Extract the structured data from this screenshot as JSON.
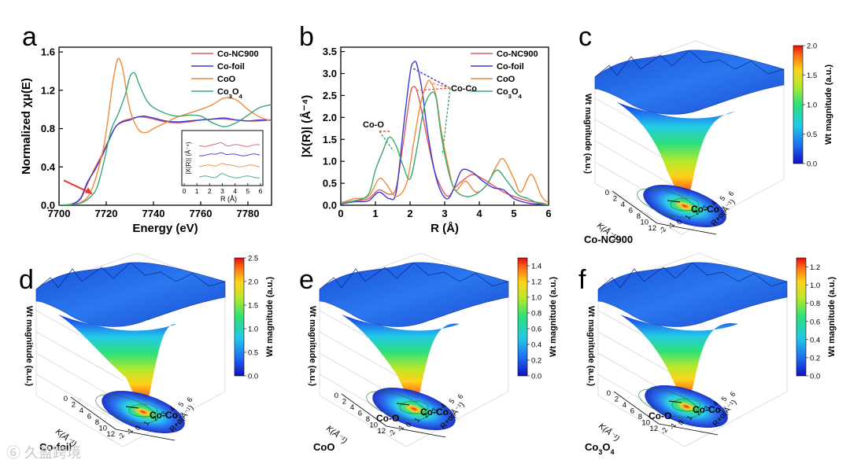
{
  "panels": {
    "a": {
      "letter": "a"
    },
    "b": {
      "letter": "b"
    },
    "c": {
      "letter": "c",
      "sample": "Co-NC900",
      "annotation": "Co-Co"
    },
    "d": {
      "letter": "d",
      "sample": "Co-foil",
      "annotation": "Co-Co"
    },
    "e": {
      "letter": "e",
      "sample": "CoO",
      "annotation1": "Co-O",
      "annotation2": "Co-Co"
    },
    "f": {
      "letter": "f",
      "sample": "Co",
      "sample_sub1": "3",
      "sample_mid": "O",
      "sample_sub2": "4",
      "annotation1": "Co-O",
      "annotation2": "Co-Co"
    }
  },
  "surface_axes": {
    "z_label": "Wt magnitude (a.u.)",
    "k_label": "K(Å⁻¹)",
    "r_label": "R+α(Å⁻¹)",
    "k_ticks": [
      "0",
      "2",
      "4",
      "6",
      "8",
      "10",
      "12"
    ],
    "r_ticks": [
      "-2",
      "-1",
      "0",
      "1",
      "2",
      "3",
      "4",
      "5",
      "6"
    ],
    "colorbar_label": "Wt magnitude (a.u.)"
  },
  "colors": {
    "Co-NC900": "#e05a5a",
    "Co-foil": "#3a3ad0",
    "CoO": "#ee8a3a",
    "Co3O4": "#3aa870"
  },
  "watermark": "⑥ 久盈跨境",
  "chart_data": [
    {
      "id": "a",
      "type": "line",
      "title": "",
      "xlabel": "Energy (eV)",
      "ylabel": "Normalized χμ(E)",
      "xlim": [
        7700,
        7790
      ],
      "ylim": [
        0,
        1.65
      ],
      "xticks": [
        7700,
        7720,
        7740,
        7760,
        7780
      ],
      "yticks": [
        0.0,
        0.4,
        0.8,
        1.2,
        1.6
      ],
      "ytick_labels": [
        "0.0",
        "0.4",
        "0.8",
        "1.2",
        "1.6"
      ],
      "legend": [
        "Co-NC900",
        "Co-foil",
        "CoO",
        "Co3O4"
      ],
      "series": [
        {
          "name": "Co-NC900",
          "x": [
            7700,
            7705,
            7709,
            7712,
            7715,
            7718,
            7721,
            7724,
            7727,
            7730,
            7733,
            7736,
            7740,
            7745,
            7750,
            7755,
            7760,
            7765,
            7770,
            7775,
            7780,
            7785,
            7790
          ],
          "y": [
            0.0,
            0.01,
            0.06,
            0.22,
            0.38,
            0.52,
            0.68,
            0.82,
            0.88,
            0.9,
            0.92,
            0.92,
            0.9,
            0.87,
            0.86,
            0.87,
            0.89,
            0.9,
            0.9,
            0.89,
            0.88,
            0.88,
            0.89
          ]
        },
        {
          "name": "Co-foil",
          "x": [
            7700,
            7705,
            7709,
            7712,
            7715,
            7718,
            7721,
            7724,
            7727,
            7730,
            7733,
            7736,
            7740,
            7745,
            7750,
            7755,
            7760,
            7765,
            7770,
            7775,
            7780,
            7785,
            7790
          ],
          "y": [
            0.0,
            0.01,
            0.07,
            0.24,
            0.36,
            0.5,
            0.67,
            0.82,
            0.87,
            0.89,
            0.92,
            0.93,
            0.91,
            0.88,
            0.87,
            0.88,
            0.89,
            0.9,
            0.91,
            0.89,
            0.88,
            0.89,
            0.89
          ]
        },
        {
          "name": "CoO",
          "x": [
            7700,
            7706,
            7710,
            7713,
            7716,
            7719,
            7721,
            7723,
            7725,
            7727,
            7729,
            7731,
            7734,
            7737,
            7740,
            7745,
            7750,
            7755,
            7760,
            7765,
            7770,
            7775,
            7780,
            7785,
            7790
          ],
          "y": [
            0.0,
            0.01,
            0.04,
            0.12,
            0.32,
            0.62,
            0.95,
            1.32,
            1.53,
            1.42,
            1.12,
            0.92,
            0.78,
            0.76,
            0.8,
            0.86,
            0.92,
            0.96,
            1.0,
            1.05,
            1.12,
            1.1,
            1.0,
            0.92,
            0.88
          ]
        },
        {
          "name": "Co3O4",
          "x": [
            7700,
            7706,
            7710,
            7713,
            7716,
            7719,
            7722,
            7725,
            7728,
            7730,
            7732,
            7734,
            7737,
            7740,
            7745,
            7750,
            7755,
            7760,
            7765,
            7770,
            7775,
            7780,
            7785,
            7790
          ],
          "y": [
            0.0,
            0.01,
            0.03,
            0.08,
            0.18,
            0.45,
            0.78,
            0.95,
            1.15,
            1.34,
            1.38,
            1.26,
            1.1,
            1.02,
            0.96,
            0.93,
            0.94,
            0.93,
            0.86,
            0.82,
            0.86,
            0.94,
            1.02,
            1.05
          ]
        }
      ],
      "annotations": [
        "arrow at pre-edge ≈ 7712 eV"
      ],
      "inset": {
        "xlabel": "R (Å)",
        "ylabel": "|X(R)| (Å⁻⁴)",
        "xticks": [
          0,
          1,
          2,
          3,
          4,
          5,
          6
        ]
      }
    },
    {
      "id": "b",
      "type": "line",
      "title": "",
      "xlabel": "R (Å)",
      "ylabel": "|X(R)| (Å⁻⁴)",
      "xlim": [
        0,
        6
      ],
      "ylim": [
        0,
        3.6
      ],
      "xticks": [
        0,
        1,
        2,
        3,
        4,
        5,
        6
      ],
      "yticks": [
        0.0,
        0.5,
        1.0,
        1.5,
        2.0,
        2.5,
        3.0,
        3.5
      ],
      "ytick_labels": [
        "0.0",
        "0.5",
        "1.0",
        "1.5",
        "2.0",
        "2.5",
        "3.0",
        "3.5"
      ],
      "legend": [
        "Co-NC900",
        "Co-foil",
        "CoO",
        "Co3O4"
      ],
      "series": [
        {
          "name": "Co-NC900",
          "x": [
            0,
            0.4,
            0.8,
            1.1,
            1.4,
            1.6,
            1.8,
            2.0,
            2.1,
            2.2,
            2.35,
            2.5,
            2.7,
            2.9,
            3.1,
            3.3,
            3.5,
            3.8,
            4.1,
            4.4,
            4.7,
            5.0,
            5.4,
            5.8,
            6.0
          ],
          "y": [
            0.05,
            0.1,
            0.15,
            0.35,
            0.25,
            0.4,
            1.4,
            2.5,
            2.7,
            2.6,
            2.1,
            1.5,
            0.8,
            0.4,
            0.2,
            0.4,
            0.55,
            0.7,
            0.6,
            0.45,
            0.3,
            0.2,
            0.1,
            0.05,
            0.0
          ]
        },
        {
          "name": "Co-foil",
          "x": [
            0,
            0.4,
            0.8,
            1.1,
            1.4,
            1.6,
            1.8,
            2.0,
            2.1,
            2.2,
            2.35,
            2.5,
            2.7,
            2.9,
            3.1,
            3.3,
            3.5,
            3.8,
            4.1,
            4.4,
            4.7,
            5.0,
            5.4,
            5.8,
            6.0
          ],
          "y": [
            0.03,
            0.08,
            0.1,
            0.3,
            0.15,
            0.3,
            1.7,
            3.0,
            3.25,
            3.2,
            2.6,
            1.7,
            0.8,
            0.3,
            0.15,
            0.45,
            0.8,
            0.75,
            0.55,
            0.4,
            0.35,
            0.15,
            0.05,
            0.02,
            0.0
          ]
        },
        {
          "name": "CoO",
          "x": [
            0,
            0.4,
            0.8,
            1.1,
            1.3,
            1.6,
            1.9,
            2.1,
            2.3,
            2.5,
            2.6,
            2.75,
            2.9,
            3.1,
            3.3,
            3.6,
            3.9,
            4.2,
            4.5,
            4.7,
            5.0,
            5.2,
            5.5,
            5.8,
            6.0
          ],
          "y": [
            0.05,
            0.15,
            0.2,
            0.6,
            0.5,
            0.2,
            0.5,
            1.4,
            2.3,
            2.8,
            2.8,
            2.5,
            1.7,
            0.9,
            0.35,
            0.55,
            0.3,
            0.45,
            0.9,
            1.05,
            0.6,
            0.3,
            0.7,
            0.2,
            0.05
          ]
        },
        {
          "name": "Co3O4",
          "x": [
            0,
            0.4,
            0.8,
            1.0,
            1.2,
            1.4,
            1.6,
            1.8,
            2.0,
            2.2,
            2.4,
            2.6,
            2.75,
            2.9,
            3.1,
            3.3,
            3.6,
            3.9,
            4.2,
            4.5,
            4.8,
            5.1,
            5.4,
            5.7,
            6.0
          ],
          "y": [
            0.05,
            0.1,
            0.25,
            0.8,
            1.2,
            1.55,
            1.35,
            0.9,
            0.6,
            1.3,
            2.2,
            2.55,
            2.45,
            1.6,
            0.8,
            0.35,
            0.2,
            0.25,
            0.45,
            0.8,
            0.55,
            0.25,
            0.15,
            0.05,
            0.0
          ]
        }
      ],
      "annotations": [
        "Co-O",
        "Co-Co"
      ]
    },
    {
      "id": "c",
      "type": "heatmap",
      "title": "Co-NC900",
      "colorbar_ticks": [
        "0.0",
        "0.5",
        "1.0",
        "1.5",
        "2.0"
      ],
      "colorbar_range": [
        0,
        2.0
      ]
    },
    {
      "id": "d",
      "type": "heatmap",
      "title": "Co-foil",
      "colorbar_ticks": [
        "0.0",
        "0.5",
        "1.0",
        "1.5",
        "2.0",
        "2.5"
      ],
      "colorbar_range": [
        0,
        2.5
      ]
    },
    {
      "id": "e",
      "type": "heatmap",
      "title": "CoO",
      "colorbar_ticks": [
        "0.0",
        "0.2",
        "0.4",
        "0.6",
        "0.8",
        "1.0",
        "1.2",
        "1.4"
      ],
      "colorbar_range": [
        0,
        1.5
      ]
    },
    {
      "id": "f",
      "type": "heatmap",
      "title": "Co3O4",
      "colorbar_ticks": [
        "0.0",
        "0.2",
        "0.4",
        "0.6",
        "0.8",
        "1.0",
        "1.2"
      ],
      "colorbar_range": [
        0,
        1.3
      ]
    }
  ]
}
